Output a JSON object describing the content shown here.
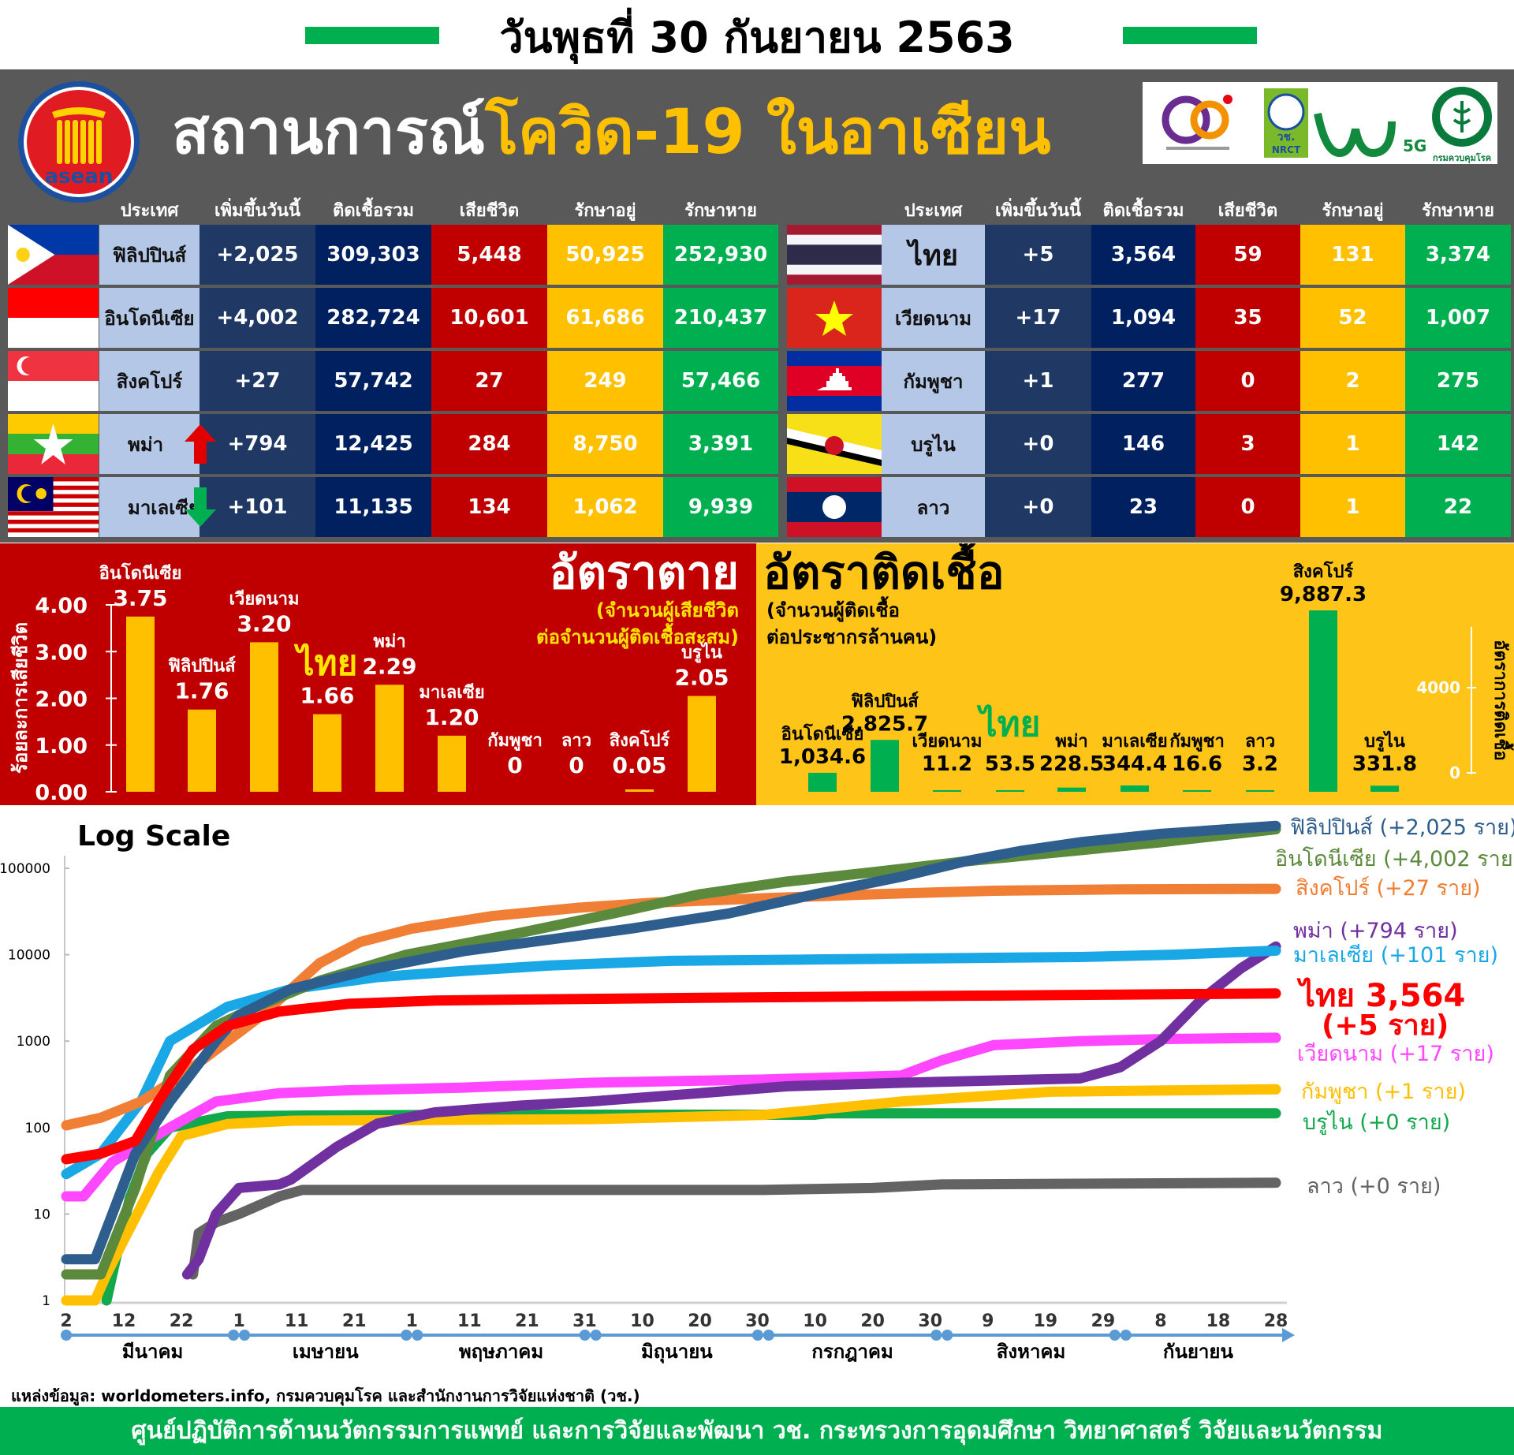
{
  "date_title": "วันพุธที่ 30 กันยายน 2563",
  "header": {
    "title_part1": "สถานการณ์",
    "title_part2": "โควิด-19 ในอาเซียน",
    "asean_logo_text": "asean",
    "logos": {
      "nrct": "NRCT",
      "nrct_thai": "วช.",
      "g5": "5G",
      "moph": "กรมควบคุมโรค"
    }
  },
  "colors": {
    "name_cell": "#b4c7e7",
    "increase": "#1f3864",
    "total": "#002060",
    "deaths": "#c00000",
    "active": "#ffc000",
    "recovered": "#00b050",
    "panel": "#595959"
  },
  "table": {
    "headers": [
      "ประเทศ",
      "เพิ่มขึ้นวันนี้",
      "ติดเชื้อรวม",
      "เสียชีวิต",
      "รักษาอยู่",
      "รักษาหาย"
    ],
    "left": [
      {
        "flag": "philippines",
        "name": "ฟิลิปปินส์",
        "increase": "+2,025",
        "total": "309,303",
        "deaths": "5,448",
        "active": "50,925",
        "recovered": "252,930"
      },
      {
        "flag": "indonesia",
        "name": "อินโดนีเซีย",
        "increase": "+4,002",
        "total": "282,724",
        "deaths": "10,601",
        "active": "61,686",
        "recovered": "210,437"
      },
      {
        "flag": "singapore",
        "name": "สิงคโปร์",
        "increase": "+27",
        "total": "57,742",
        "deaths": "27",
        "active": "249",
        "recovered": "57,466"
      },
      {
        "flag": "myanmar",
        "name": "พม่า",
        "trend": "arrow-up-icon",
        "increase": "+794",
        "total": "12,425",
        "deaths": "284",
        "active": "8,750",
        "recovered": "3,391"
      },
      {
        "flag": "malaysia",
        "name": "มาเลเซีย",
        "trend": "arrow-down-icon",
        "increase": "+101",
        "total": "11,135",
        "deaths": "134",
        "active": "1,062",
        "recovered": "9,939"
      }
    ],
    "right": [
      {
        "flag": "thailand",
        "name": "ไทย",
        "increase": "+5",
        "total": "3,564",
        "deaths": "59",
        "active": "131",
        "recovered": "3,374"
      },
      {
        "flag": "vietnam",
        "name": "เวียดนาม",
        "increase": "+17",
        "total": "1,094",
        "deaths": "35",
        "active": "52",
        "recovered": "1,007"
      },
      {
        "flag": "cambodia",
        "name": "กัมพูชา",
        "increase": "+1",
        "total": "277",
        "deaths": "0",
        "active": "2",
        "recovered": "275"
      },
      {
        "flag": "brunei",
        "name": "บรูไน",
        "increase": "+0",
        "total": "146",
        "deaths": "3",
        "active": "1",
        "recovered": "142"
      },
      {
        "flag": "laos",
        "name": "ลาว",
        "increase": "+0",
        "total": "23",
        "deaths": "0",
        "active": "1",
        "recovered": "22"
      }
    ]
  },
  "chart_data": [
    {
      "type": "bar",
      "title": "อัตราตาย",
      "subtitle": [
        "(จำนวนผู้เสียชีวิต",
        "ต่อจำนวนผู้ติดเชื้อสะสม)"
      ],
      "ylabel": "ร้อยละการเสียชีวิต",
      "ylim": [
        0,
        4
      ],
      "yticks": [
        "0.00",
        "1.00",
        "2.00",
        "3.00",
        "4.00"
      ],
      "categories": [
        "อินโดนีเซีย",
        "ฟิลิปปินส์",
        "เวียดนาม",
        "ไทย",
        "พม่า",
        "มาเลเซีย",
        "กัมพูชา",
        "ลาว",
        "สิงคโปร์",
        "บรูไน"
      ],
      "values": [
        3.75,
        1.76,
        3.2,
        1.66,
        2.29,
        1.2,
        0,
        0,
        0.05,
        2.05
      ],
      "value_labels": [
        "3.75",
        "1.76",
        "3.20",
        "1.66",
        "2.29",
        "1.20",
        "0",
        "0",
        "0.05",
        "2.05"
      ],
      "highlight": "ไทย",
      "bar_color": "#ffc000"
    },
    {
      "type": "bar",
      "title": "อัตราติดเชื้อ",
      "subtitle": [
        "(จำนวนผู้ติดเชื้อ",
        "ต่อประชากรล้านคน)"
      ],
      "ylabel": "อัตราการติดเชื้อ",
      "yticks": [
        "0",
        "4000"
      ],
      "categories": [
        "อินโดนีเซีย",
        "ฟิลิปปินส์",
        "เวียดนาม",
        "ไทย",
        "พม่า",
        "มาเลเซีย",
        "กัมพูชา",
        "ลาว",
        "สิงคโปร์",
        "บรูไน"
      ],
      "values": [
        1034.6,
        2825.7,
        11.2,
        53.5,
        228.5,
        344.4,
        16.6,
        3.2,
        9887.3,
        331.8
      ],
      "value_labels": [
        "1,034.6",
        "2,825.7",
        "11.2",
        "53.5",
        "228.5",
        "344.4",
        "16.6",
        "3.2",
        "9,887.3",
        "331.8"
      ],
      "highlight": "ไทย",
      "bar_color": "#00b050"
    },
    {
      "type": "line",
      "title": "Log Scale",
      "yscale": "log",
      "ylim": [
        1,
        400000
      ],
      "yticks": [
        "1",
        "10",
        "100",
        "1000",
        "10000",
        "100000"
      ],
      "xticks": [
        "2",
        "12",
        "22",
        "1",
        "11",
        "21",
        "1",
        "11",
        "21",
        "31",
        "10",
        "20",
        "30",
        "10",
        "20",
        "30",
        "9",
        "19",
        "29",
        "8",
        "18",
        "28"
      ],
      "months": [
        "มีนาคม",
        "เมษายน",
        "พฤษภาคม",
        "มิถุนายน",
        "กรกฎาคม",
        "สิงหาคม",
        "กันยายน"
      ],
      "x_range": [
        "03-02",
        "09-28"
      ],
      "series": [
        {
          "name": "ลาว (+0 ราย)",
          "color": "#636363",
          "points": [
            [
              "03-24",
              2
            ],
            [
              "03-25",
              6
            ],
            [
              "03-28",
              8
            ],
            [
              "04-01",
              10
            ],
            [
              "04-08",
              16
            ],
            [
              "04-12",
              19
            ],
            [
              "07-01",
              19
            ],
            [
              "07-20",
              20
            ],
            [
              "08-01",
              22
            ],
            [
              "09-28",
              23
            ]
          ]
        },
        {
          "name": "บรูไน (+0 ราย)",
          "color": "#12a84c",
          "points": [
            [
              "03-09",
              1
            ],
            [
              "03-10",
              2
            ],
            [
              "03-13",
              15
            ],
            [
              "03-16",
              50
            ],
            [
              "03-20",
              100
            ],
            [
              "03-30",
              135
            ],
            [
              "04-15",
              138
            ],
            [
              "05-15",
              141
            ],
            [
              "07-10",
              141
            ],
            [
              "07-12",
              146
            ],
            [
              "09-28",
              146
            ]
          ]
        },
        {
          "name": "กัมพูชา (+1 ราย)",
          "color": "#fec000",
          "points": [
            [
              "03-02",
              1
            ],
            [
              "03-07",
              1
            ],
            [
              "03-09",
              2
            ],
            [
              "03-12",
              5
            ],
            [
              "03-18",
              30
            ],
            [
              "03-22",
              80
            ],
            [
              "03-30",
              110
            ],
            [
              "04-10",
              120
            ],
            [
              "05-01",
              122
            ],
            [
              "06-01",
              125
            ],
            [
              "07-01",
              140
            ],
            [
              "07-25",
              200
            ],
            [
              "08-20",
              260
            ],
            [
              "09-28",
              277
            ]
          ]
        },
        {
          "name": "เวียดนาม (+17 ราย)",
          "color": "#ff47ff",
          "points": [
            [
              "03-02",
              16
            ],
            [
              "03-05",
              16
            ],
            [
              "03-10",
              40
            ],
            [
              "03-20",
              100
            ],
            [
              "03-28",
              200
            ],
            [
              "04-08",
              250
            ],
            [
              "04-20",
              270
            ],
            [
              "05-10",
              290
            ],
            [
              "06-01",
              330
            ],
            [
              "07-01",
              360
            ],
            [
              "07-25",
              400
            ],
            [
              "08-01",
              600
            ],
            [
              "08-10",
              900
            ],
            [
              "08-25",
              1000
            ],
            [
              "09-10",
              1060
            ],
            [
              "09-28",
              1094
            ]
          ]
        },
        {
          "name": "พม่า (+794 ราย)",
          "color": "#7030a0",
          "points": [
            [
              "03-23",
              2
            ],
            [
              "03-25",
              3
            ],
            [
              "03-28",
              10
            ],
            [
              "04-01",
              20
            ],
            [
              "04-08",
              22
            ],
            [
              "04-10",
              25
            ],
            [
              "04-18",
              60
            ],
            [
              "04-25",
              111
            ],
            [
              "05-05",
              150
            ],
            [
              "05-20",
              180
            ],
            [
              "06-01",
              200
            ],
            [
              "06-20",
              250
            ],
            [
              "07-05",
              300
            ],
            [
              "07-25",
              330
            ],
            [
              "08-10",
              350
            ],
            [
              "08-25",
              370
            ],
            [
              "09-01",
              500
            ],
            [
              "09-08",
              1000
            ],
            [
              "09-15",
              3000
            ],
            [
              "09-22",
              7000
            ],
            [
              "09-28",
              12425
            ]
          ]
        },
        {
          "name": "มาเลเซีย (+101 ราย)",
          "color": "#1aa7e6",
          "points": [
            [
              "03-02",
              29
            ],
            [
              "03-08",
              50
            ],
            [
              "03-15",
              200
            ],
            [
              "03-20",
              1000
            ],
            [
              "03-30",
              2500
            ],
            [
              "04-10",
              4000
            ],
            [
              "04-25",
              5500
            ],
            [
              "05-10",
              6500
            ],
            [
              "05-25",
              7500
            ],
            [
              "06-15",
              8500
            ],
            [
              "07-10",
              8800
            ],
            [
              "08-01",
              9100
            ],
            [
              "08-25",
              9400
            ],
            [
              "09-10",
              10000
            ],
            [
              "09-28",
              11135
            ]
          ]
        },
        {
          "name": "สิงคโปร์ (+27 ราย)",
          "color": "#f07f35",
          "points": [
            [
              "03-02",
              106
            ],
            [
              "03-08",
              130
            ],
            [
              "03-15",
              200
            ],
            [
              "03-22",
              400
            ],
            [
              "03-30",
              1000
            ],
            [
              "04-05",
              2000
            ],
            [
              "04-15",
              8000
            ],
            [
              "04-22",
              14000
            ],
            [
              "05-01",
              20000
            ],
            [
              "05-15",
              28000
            ],
            [
              "05-30",
              35000
            ],
            [
              "06-12",
              40000
            ],
            [
              "07-01",
              45000
            ],
            [
              "07-20",
              50000
            ],
            [
              "08-10",
              55000
            ],
            [
              "09-01",
              57000
            ],
            [
              "09-28",
              57742
            ]
          ]
        },
        {
          "name": "อินโดนีเซีย (+4,002 ราย)",
          "color": "#5b8a3c",
          "points": [
            [
              "03-02",
              2
            ],
            [
              "03-08",
              2
            ],
            [
              "03-14",
              20
            ],
            [
              "03-20",
              400
            ],
            [
              "03-28",
              1500
            ],
            [
              "04-04",
              2500
            ],
            [
              "04-15",
              5000
            ],
            [
              "04-30",
              10000
            ],
            [
              "05-20",
              18000
            ],
            [
              "06-05",
              30000
            ],
            [
              "06-20",
              50000
            ],
            [
              "07-05",
              70000
            ],
            [
              "07-20",
              90000
            ],
            [
              "08-05",
              120000
            ],
            [
              "08-20",
              150000
            ],
            [
              "09-08",
              200000
            ],
            [
              "09-28",
              282724
            ]
          ]
        },
        {
          "name": "ฟิลิปปินส์ (+2,025 ราย)",
          "color": "#2e5e8e",
          "points": [
            [
              "03-02",
              3
            ],
            [
              "03-07",
              3
            ],
            [
              "03-10",
              10
            ],
            [
              "03-14",
              50
            ],
            [
              "03-20",
              200
            ],
            [
              "03-28",
              1000
            ],
            [
              "04-01",
              2000
            ],
            [
              "04-10",
              4000
            ],
            [
              "04-25",
              7000
            ],
            [
              "05-10",
              11000
            ],
            [
              "05-25",
              15000
            ],
            [
              "06-08",
              20000
            ],
            [
              "06-25",
              30000
            ],
            [
              "07-10",
              50000
            ],
            [
              "07-25",
              80000
            ],
            [
              "08-05",
              120000
            ],
            [
              "08-15",
              160000
            ],
            [
              "08-25",
              200000
            ],
            [
              "09-08",
              250000
            ],
            [
              "09-28",
              309303
            ]
          ]
        },
        {
          "name": "ไทย",
          "color": "#ff0000",
          "points": [
            [
              "03-02",
              43
            ],
            [
              "03-08",
              50
            ],
            [
              "03-14",
              70
            ],
            [
              "03-18",
              200
            ],
            [
              "03-24",
              800
            ],
            [
              "03-30",
              1500
            ],
            [
              "04-08",
              2200
            ],
            [
              "04-20",
              2700
            ],
            [
              "05-05",
              2950
            ],
            [
              "05-25",
              3050
            ],
            [
              "06-15",
              3150
            ],
            [
              "07-10",
              3250
            ],
            [
              "08-05",
              3350
            ],
            [
              "09-01",
              3450
            ],
            [
              "09-28",
              3564
            ]
          ]
        }
      ],
      "thai_label": {
        "line1": "ไทย 3,564",
        "line2": "(+5 ราย)"
      }
    }
  ],
  "source": "แหล่งข้อมูล: worldometers.info, กรมควบคุมโรค และสำนักงานการวิจัยแห่งชาติ (วช.)",
  "footer": "ศูนย์ปฏิบัติการด้านนวัตกรรมการแพทย์ และการวิจัยและพัฒนา  วช.   กระทรวงการอุดมศึกษา วิทยาศาสตร์ วิจัยและนวัตกรรม"
}
